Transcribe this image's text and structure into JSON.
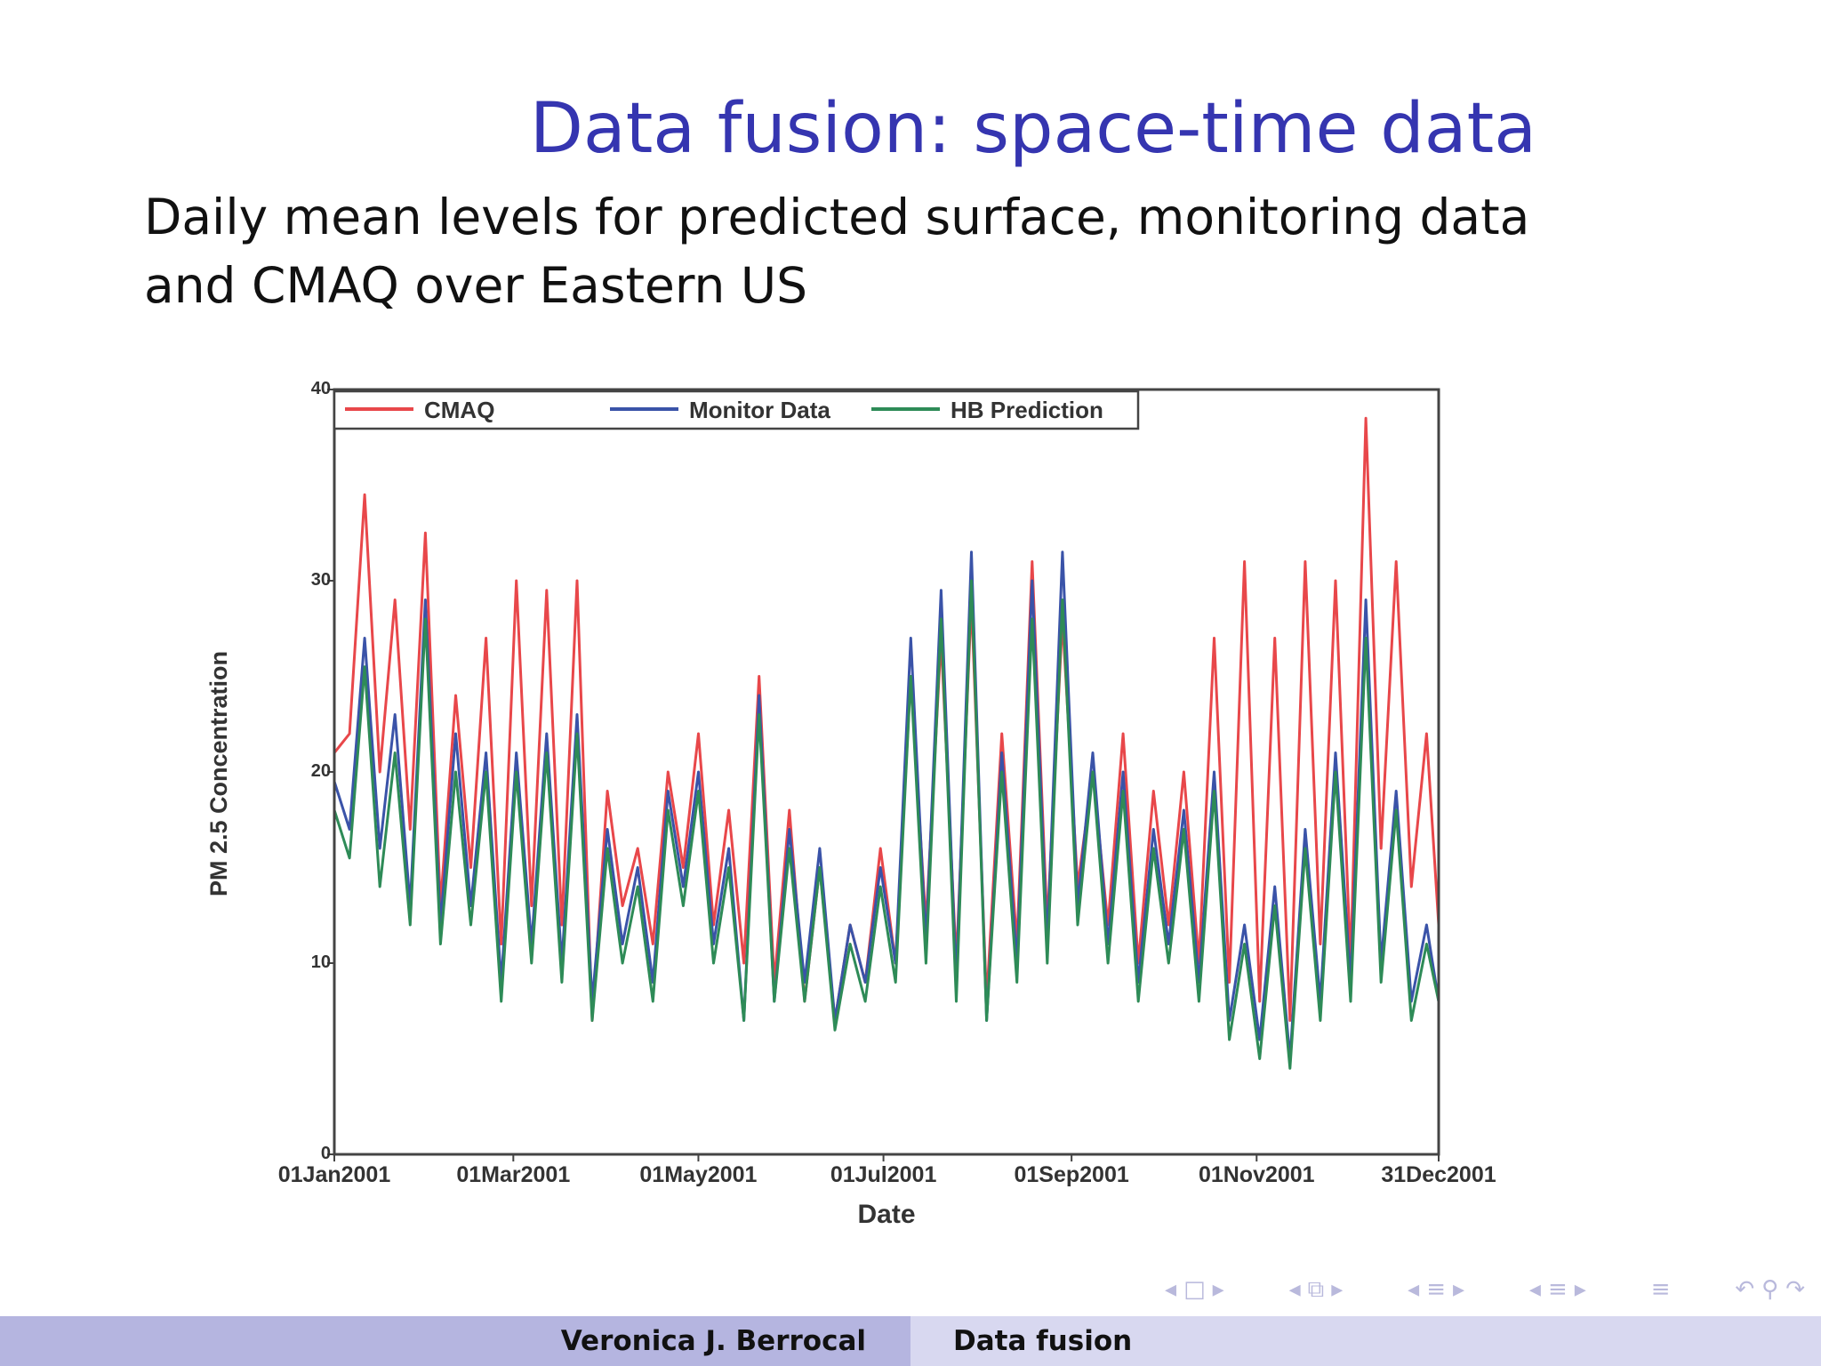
{
  "slide": {
    "title": "Data fusion: space-time data",
    "body": "Daily mean levels for predicted surface, monitoring data and CMAQ over Eastern US"
  },
  "footer": {
    "author": "Veronica J. Berrocal",
    "short_title": "Data fusion"
  },
  "nav": {
    "icons": [
      "frame-prev-icon",
      "frame-icon",
      "frame-next-icon",
      "subsection-prev-icon",
      "subsection-icon",
      "subsection-next-icon",
      "section-prev-icon",
      "section-icon",
      "section-next-icon",
      "slide-prev-icon",
      "slide-icon",
      "slide-next-icon",
      "align-icon",
      "undo-icon",
      "search-icon",
      "redo-icon"
    ]
  },
  "colors": {
    "title": "#3535b0",
    "cmaq": "#e8474a",
    "monitor": "#3a53a8",
    "hb": "#2e8b57",
    "footer_left": "#b5b5e0",
    "footer_right": "#d8d8f0"
  },
  "chart_data": {
    "type": "line",
    "xlabel": "Date",
    "ylabel": "PM 2.5 Concentration",
    "x_tick_labels": [
      "01Jan2001",
      "01Mar2001",
      "01May2001",
      "01Jul2001",
      "01Sep2001",
      "01Nov2001",
      "31Dec2001"
    ],
    "x_tick_dates": [
      "2001-01-01",
      "2001-03-01",
      "2001-05-01",
      "2001-07-01",
      "2001-09-01",
      "2001-11-01",
      "2001-12-31"
    ],
    "ylim": [
      0,
      40
    ],
    "y_ticks": [
      0,
      10,
      20,
      30,
      40
    ],
    "grid": false,
    "legend_position": "top-left",
    "x": [
      "2001-01-01",
      "2001-01-06",
      "2001-01-11",
      "2001-01-16",
      "2001-01-21",
      "2001-01-26",
      "2001-01-31",
      "2001-02-05",
      "2001-02-10",
      "2001-02-15",
      "2001-02-20",
      "2001-02-25",
      "2001-03-02",
      "2001-03-07",
      "2001-03-12",
      "2001-03-17",
      "2001-03-22",
      "2001-03-27",
      "2001-04-01",
      "2001-04-06",
      "2001-04-11",
      "2001-04-16",
      "2001-04-21",
      "2001-04-26",
      "2001-05-01",
      "2001-05-06",
      "2001-05-11",
      "2001-05-16",
      "2001-05-21",
      "2001-05-26",
      "2001-05-31",
      "2001-06-05",
      "2001-06-10",
      "2001-06-15",
      "2001-06-20",
      "2001-06-25",
      "2001-06-30",
      "2001-07-05",
      "2001-07-10",
      "2001-07-15",
      "2001-07-20",
      "2001-07-25",
      "2001-07-30",
      "2001-08-04",
      "2001-08-09",
      "2001-08-14",
      "2001-08-19",
      "2001-08-24",
      "2001-08-29",
      "2001-09-03",
      "2001-09-08",
      "2001-09-13",
      "2001-09-18",
      "2001-09-23",
      "2001-09-28",
      "2001-10-03",
      "2001-10-08",
      "2001-10-13",
      "2001-10-18",
      "2001-10-23",
      "2001-10-28",
      "2001-11-02",
      "2001-11-07",
      "2001-11-12",
      "2001-11-17",
      "2001-11-22",
      "2001-11-27",
      "2001-12-02",
      "2001-12-07",
      "2001-12-12",
      "2001-12-17",
      "2001-12-22",
      "2001-12-27",
      "2001-12-31"
    ],
    "series": [
      {
        "name": "CMAQ",
        "values": [
          21,
          22,
          34.5,
          20,
          29,
          17,
          32.5,
          13,
          24,
          15,
          27,
          11,
          30,
          13,
          29.5,
          12,
          30,
          7,
          19,
          13,
          16,
          11,
          20,
          15,
          22,
          12,
          18,
          10,
          25,
          9,
          18,
          8,
          15,
          7,
          12,
          9,
          16,
          10,
          25,
          12,
          27,
          10,
          29,
          8,
          22,
          11,
          31,
          12,
          28,
          14,
          20,
          12,
          22,
          10,
          19,
          12,
          20,
          10,
          27,
          9,
          31,
          8,
          27,
          7,
          31,
          11,
          30,
          10,
          38.5,
          16,
          31,
          14,
          22,
          12
        ]
      },
      {
        "name": "Monitor Data",
        "values": [
          19.5,
          17,
          27,
          16,
          23,
          13,
          29,
          12,
          22,
          13,
          21,
          9,
          21,
          11,
          22,
          10,
          23,
          8,
          17,
          11,
          15,
          9,
          19,
          14,
          20,
          11,
          16,
          7,
          24,
          8,
          17,
          9,
          16,
          7,
          12,
          9,
          15,
          10,
          27,
          11,
          29.5,
          9,
          31.5,
          7,
          21,
          10,
          30,
          11,
          31.5,
          13,
          21,
          11,
          20,
          9,
          17,
          11,
          18,
          9,
          20,
          7,
          12,
          6,
          14,
          5,
          17,
          8,
          21,
          9,
          29,
          10,
          19,
          8,
          12,
          8
        ]
      },
      {
        "name": "HB Prediction",
        "values": [
          18,
          15.5,
          25.5,
          14,
          21,
          12,
          28,
          11,
          20,
          12,
          20,
          8,
          20,
          10,
          21,
          9,
          22,
          7,
          16,
          10,
          14,
          8,
          18,
          13,
          19,
          10,
          15,
          7,
          23,
          8,
          16,
          8,
          15,
          6.5,
          11,
          8,
          14,
          9,
          25,
          10,
          28,
          8,
          30,
          7,
          20,
          9,
          28,
          10,
          29,
          12,
          20,
          10,
          19,
          8,
          16,
          10,
          17,
          8,
          19,
          6,
          11,
          5,
          13,
          4.5,
          16,
          7,
          20,
          8,
          27,
          9,
          18,
          7,
          11,
          8
        ]
      }
    ]
  }
}
